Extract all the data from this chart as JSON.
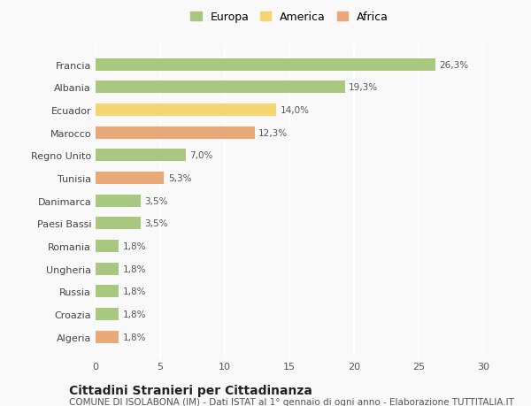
{
  "categories": [
    "Francia",
    "Albania",
    "Ecuador",
    "Marocco",
    "Regno Unito",
    "Tunisia",
    "Danimarca",
    "Paesi Bassi",
    "Romania",
    "Ungheria",
    "Russia",
    "Croazia",
    "Algeria"
  ],
  "values": [
    26.3,
    19.3,
    14.0,
    12.3,
    7.0,
    5.3,
    3.5,
    3.5,
    1.8,
    1.8,
    1.8,
    1.8,
    1.8
  ],
  "labels": [
    "26,3%",
    "19,3%",
    "14,0%",
    "12,3%",
    "7,0%",
    "5,3%",
    "3,5%",
    "3,5%",
    "1,8%",
    "1,8%",
    "1,8%",
    "1,8%",
    "1,8%"
  ],
  "colors": [
    "#a8c880",
    "#a8c880",
    "#f5d570",
    "#e8a878",
    "#a8c880",
    "#e8a878",
    "#a8c880",
    "#a8c880",
    "#a8c880",
    "#a8c880",
    "#a8c880",
    "#a8c880",
    "#e8a878"
  ],
  "legend_labels": [
    "Europa",
    "America",
    "Africa"
  ],
  "legend_colors": [
    "#a8c880",
    "#f5d570",
    "#e8a878"
  ],
  "title": "Cittadini Stranieri per Cittadinanza",
  "subtitle": "COMUNE DI ISOLABONA (IM) - Dati ISTAT al 1° gennaio di ogni anno - Elaborazione TUTTITALIA.IT",
  "xlim": [
    0,
    30
  ],
  "xticks": [
    0,
    5,
    10,
    15,
    20,
    25,
    30
  ],
  "background_color": "#f9f9f9",
  "grid_color": "#ffffff",
  "bar_height": 0.55,
  "title_fontsize": 10,
  "subtitle_fontsize": 7.5,
  "label_fontsize": 7.5,
  "tick_fontsize": 8,
  "legend_fontsize": 9
}
